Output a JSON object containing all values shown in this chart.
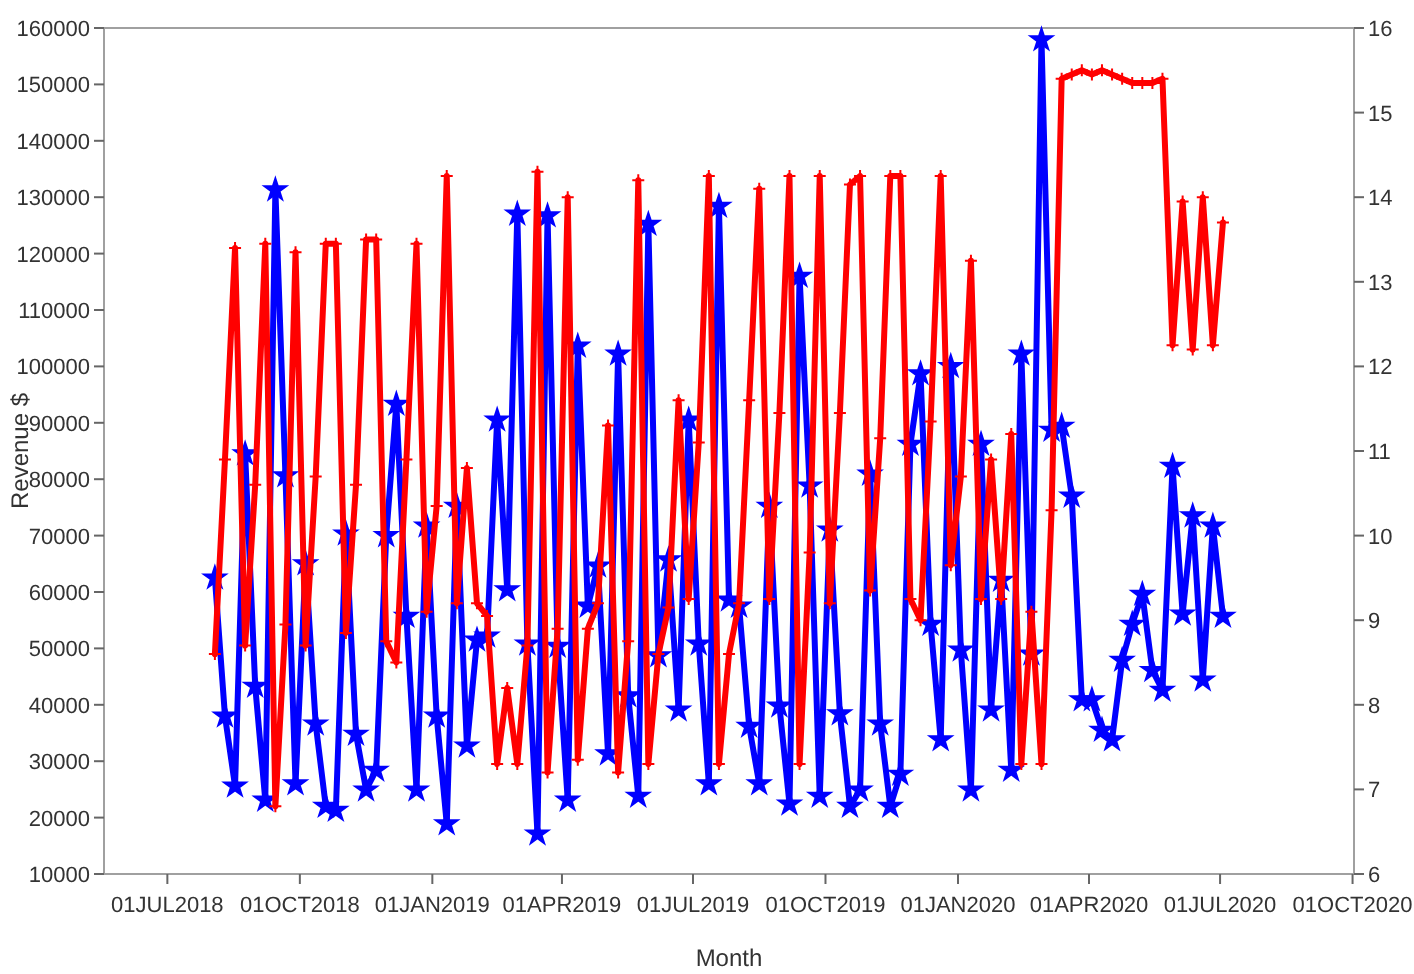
{
  "chart_data": {
    "type": "line",
    "xlabel": "Month",
    "ylabel": "Revenue $",
    "x": [
      "2018-08-03",
      "2018-08-10",
      "2018-08-17",
      "2018-08-24",
      "2018-08-31",
      "2018-09-07",
      "2018-09-14",
      "2018-09-21",
      "2018-09-28",
      "2018-10-05",
      "2018-10-12",
      "2018-10-19",
      "2018-10-26",
      "2018-11-02",
      "2018-11-09",
      "2018-11-16",
      "2018-11-23",
      "2018-11-30",
      "2018-12-07",
      "2018-12-14",
      "2018-12-21",
      "2018-12-28",
      "2019-01-04",
      "2019-01-11",
      "2019-01-18",
      "2019-01-25",
      "2019-02-01",
      "2019-02-08",
      "2019-02-15",
      "2019-02-22",
      "2019-03-01",
      "2019-03-08",
      "2019-03-15",
      "2019-03-22",
      "2019-03-29",
      "2019-04-05",
      "2019-04-12",
      "2019-04-19",
      "2019-04-26",
      "2019-05-03",
      "2019-05-10",
      "2019-05-17",
      "2019-05-24",
      "2019-05-31",
      "2019-06-07",
      "2019-06-14",
      "2019-06-21",
      "2019-06-28",
      "2019-07-05",
      "2019-07-12",
      "2019-07-19",
      "2019-07-26",
      "2019-08-02",
      "2019-08-09",
      "2019-08-16",
      "2019-08-23",
      "2019-08-30",
      "2019-09-06",
      "2019-09-13",
      "2019-09-20",
      "2019-09-27",
      "2019-10-04",
      "2019-10-11",
      "2019-10-18",
      "2019-10-25",
      "2019-11-01",
      "2019-11-08",
      "2019-11-15",
      "2019-11-22",
      "2019-11-29",
      "2019-12-06",
      "2019-12-13",
      "2019-12-20",
      "2019-12-27",
      "2020-01-03",
      "2020-01-10",
      "2020-01-17",
      "2020-01-24",
      "2020-01-31",
      "2020-02-07",
      "2020-02-14",
      "2020-02-21",
      "2020-02-28",
      "2020-03-06",
      "2020-03-13",
      "2020-03-20",
      "2020-03-27",
      "2020-04-03",
      "2020-04-10",
      "2020-04-17",
      "2020-04-24",
      "2020-05-01",
      "2020-05-08",
      "2020-05-15",
      "2020-05-22",
      "2020-05-29",
      "2020-06-05",
      "2020-06-12",
      "2020-06-19",
      "2020-06-26",
      "2020-07-03"
    ],
    "series": [
      {
        "color": "#0000ff",
        "marker": "star",
        "values": [
          62500,
          38000,
          25600,
          84500,
          43300,
          23100,
          131300,
          80600,
          26000,
          65000,
          36600,
          22000,
          21300,
          70300,
          34800,
          24900,
          28400,
          70000,
          93300,
          55700,
          24900,
          71700,
          38000,
          18900,
          75200,
          32700,
          51500,
          52200,
          90500,
          60400,
          127000,
          50800,
          17100,
          126700,
          50400,
          23100,
          103600,
          57500,
          64600,
          31300,
          102200,
          41600,
          23800,
          125200,
          48700,
          65700,
          39100,
          90500,
          50800,
          26000,
          128400,
          58600,
          57500,
          36200,
          26000,
          75200,
          39800,
          22400,
          116000,
          78800,
          23800,
          71000,
          38400,
          22000,
          24900,
          80900,
          36600,
          22000,
          27700,
          86200,
          98700,
          54300,
          33800,
          100000,
          49700,
          24900,
          86200,
          39100,
          62100,
          28400,
          102200,
          49000,
          157900,
          88700,
          89400,
          77000,
          40900,
          40900,
          35500,
          33800,
          47900,
          54300,
          59600,
          46100,
          42600,
          82300,
          56100,
          73500,
          44400,
          71700,
          55700
        ]
      },
      {
        "color": "#ff0000",
        "marker": "cross",
        "axis": "y2",
        "values": [
          8.6,
          10.9,
          13.4,
          8.7,
          10.6,
          13.45,
          6.8,
          8.95,
          13.35,
          8.7,
          10.7,
          13.45,
          13.45,
          8.85,
          10.6,
          13.5,
          13.5,
          8.75,
          8.5,
          10.9,
          13.45,
          9.1,
          10.35,
          14.25,
          9.2,
          10.8,
          9.2,
          9.05,
          7.3,
          8.2,
          7.3,
          8.7,
          14.3,
          7.2,
          8.9,
          14.0,
          7.35,
          8.9,
          9.2,
          11.3,
          7.2,
          8.75,
          14.2,
          7.3,
          8.6,
          9.15,
          11.6,
          9.25,
          11.1,
          14.25,
          7.3,
          8.6,
          9.2,
          11.6,
          14.1,
          9.25,
          11.45,
          14.25,
          7.3,
          9.8,
          14.25,
          9.2,
          11.45,
          14.15,
          14.25,
          9.35,
          11.15,
          14.25,
          14.25,
          9.25,
          9.0,
          11.35,
          14.25,
          9.65,
          10.7,
          13.25,
          9.25,
          10.9,
          9.25,
          11.2,
          7.3,
          9.1,
          7.3,
          10.3,
          15.4,
          15.45,
          15.5,
          15.45,
          15.5,
          15.45,
          15.4,
          15.35,
          15.35,
          15.35,
          15.4,
          12.25,
          13.95,
          12.2,
          14.0,
          12.25,
          13.7
        ]
      }
    ],
    "xlim": [
      "2018-05-18",
      "2020-10-02"
    ],
    "xticks": [
      {
        "value": "2018-07-01",
        "label": "01JUL2018"
      },
      {
        "value": "2018-10-01",
        "label": "01OCT2018"
      },
      {
        "value": "2019-01-01",
        "label": "01JAN2019"
      },
      {
        "value": "2019-04-01",
        "label": "01APR2019"
      },
      {
        "value": "2019-07-01",
        "label": "01JUL2019"
      },
      {
        "value": "2019-10-01",
        "label": "01OCT2019"
      },
      {
        "value": "2020-01-01",
        "label": "01JAN2020"
      },
      {
        "value": "2020-04-01",
        "label": "01APR2020"
      },
      {
        "value": "2020-07-01",
        "label": "01JUL2020"
      },
      {
        "value": "2020-10-01",
        "label": "01OCT2020"
      }
    ],
    "ylim": [
      10000,
      160000
    ],
    "yticks": [
      10000,
      20000,
      30000,
      40000,
      50000,
      60000,
      70000,
      80000,
      90000,
      100000,
      110000,
      120000,
      130000,
      140000,
      150000,
      160000
    ],
    "y2lim": [
      6,
      16
    ],
    "y2ticks": [
      6,
      7,
      8,
      9,
      10,
      11,
      12,
      13,
      14,
      15,
      16
    ],
    "grid": false,
    "line_style": "solid"
  }
}
